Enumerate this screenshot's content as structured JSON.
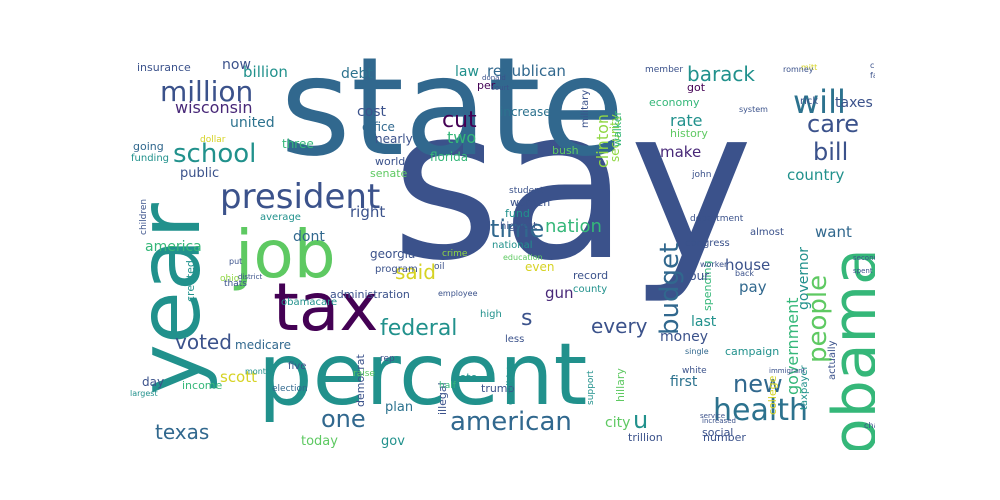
{
  "wordcloud": {
    "colors": {
      "purple": "#440154",
      "indigo": "#3b528b",
      "blue": "#31688e",
      "teal": "#21918c",
      "green": "#35b779",
      "lime": "#90d743",
      "yellow": "#d6d324"
    },
    "words": [
      {
        "text": "say",
        "color": "#3b528b"
      },
      {
        "text": "state",
        "color": "#31688e"
      },
      {
        "text": "year",
        "color": "#21918c"
      },
      {
        "text": "percent",
        "color": "#21918c"
      },
      {
        "text": "obama",
        "color": "#35b779"
      },
      {
        "text": "job",
        "color": "#5ec962"
      },
      {
        "text": "tax",
        "color": "#440154"
      },
      {
        "text": "president",
        "color": "#3b528b"
      },
      {
        "text": "health",
        "color": "#2c728e"
      },
      {
        "text": "american",
        "color": "#31688e"
      },
      {
        "text": "will",
        "color": "#2c728e"
      },
      {
        "text": "million",
        "color": "#3b528b"
      },
      {
        "text": "school",
        "color": "#21918c"
      },
      {
        "text": "people",
        "color": "#5ec962"
      },
      {
        "text": "budget",
        "color": "#31688e"
      },
      {
        "text": "care",
        "color": "#3b528b"
      },
      {
        "text": "bill",
        "color": "#3b528b"
      },
      {
        "text": "time",
        "color": "#31688e"
      },
      {
        "text": "federal",
        "color": "#21918c"
      },
      {
        "text": "new",
        "color": "#31688e"
      },
      {
        "text": "one",
        "color": "#31688e"
      },
      {
        "text": "voted",
        "color": "#3b528b"
      },
      {
        "text": "texas",
        "color": "#31688e"
      },
      {
        "text": "barack",
        "color": "#21918c"
      },
      {
        "text": "every",
        "color": "#3b528b"
      },
      {
        "text": "cut",
        "color": "#440154"
      },
      {
        "text": "said",
        "color": "#d6d324"
      },
      {
        "text": "government",
        "color": "#35b779"
      },
      {
        "text": "s",
        "color": "#3b528b"
      },
      {
        "text": "u",
        "color": "#21918c"
      },
      {
        "text": "nation",
        "color": "#35b779"
      },
      {
        "text": "wisconsin",
        "color": "#482878"
      },
      {
        "text": "united",
        "color": "#2c728e"
      },
      {
        "text": "billion",
        "color": "#21918c"
      },
      {
        "text": "law",
        "color": "#21918c"
      },
      {
        "text": "republican",
        "color": "#31688e"
      },
      {
        "text": "now",
        "color": "#3b528b"
      },
      {
        "text": "debt",
        "color": "#2c728e"
      },
      {
        "text": "cost",
        "color": "#3b528b"
      },
      {
        "text": "office",
        "color": "#31688e"
      },
      {
        "text": "two",
        "color": "#35b779"
      },
      {
        "text": "clinton",
        "color": "#90d743"
      },
      {
        "text": "rate",
        "color": "#21918c"
      },
      {
        "text": "make",
        "color": "#482878"
      },
      {
        "text": "taxes",
        "color": "#3b528b"
      },
      {
        "text": "country",
        "color": "#21918c"
      },
      {
        "text": "house",
        "color": "#3b528b"
      },
      {
        "text": "pay",
        "color": "#31688e"
      },
      {
        "text": "want",
        "color": "#31688e"
      },
      {
        "text": "governor",
        "color": "#21918c"
      },
      {
        "text": "right",
        "color": "#3b528b"
      },
      {
        "text": "dont",
        "color": "#31688e"
      },
      {
        "text": "america",
        "color": "#35b779"
      },
      {
        "text": "scott",
        "color": "#d6d324"
      },
      {
        "text": "public",
        "color": "#3b528b"
      },
      {
        "text": "gun",
        "color": "#482878"
      },
      {
        "text": "money",
        "color": "#3b528b"
      },
      {
        "text": "last",
        "color": "#21918c"
      },
      {
        "text": "first",
        "color": "#2c728e"
      },
      {
        "text": "city",
        "color": "#5ec962"
      },
      {
        "text": "gov",
        "color": "#21918c"
      },
      {
        "text": "plan",
        "color": "#2c728e"
      },
      {
        "text": "today",
        "color": "#5ec962"
      },
      {
        "text": "day",
        "color": "#3b528b"
      },
      {
        "text": "medicare",
        "color": "#31688e"
      },
      {
        "text": "georgia",
        "color": "#3b528b"
      },
      {
        "text": "florida",
        "color": "#35b779"
      },
      {
        "text": "insurance",
        "color": "#3b528b"
      },
      {
        "text": "increase",
        "color": "#2c728e"
      },
      {
        "text": "per",
        "color": "#440154"
      },
      {
        "text": "got",
        "color": "#440154"
      },
      {
        "text": "security",
        "color": "#90d743"
      },
      {
        "text": "economy",
        "color": "#35b779"
      },
      {
        "text": "history",
        "color": "#5ec962"
      },
      {
        "text": "world",
        "color": "#3b528b"
      },
      {
        "text": "senate",
        "color": "#5ec962"
      },
      {
        "text": "women",
        "color": "#3b528b"
      },
      {
        "text": "fund",
        "color": "#21918c"
      },
      {
        "text": "even",
        "color": "#d6d324"
      },
      {
        "text": "national",
        "color": "#21918c"
      },
      {
        "text": "bush",
        "color": "#5ec962"
      },
      {
        "text": "nearly",
        "color": "#3b528b"
      },
      {
        "text": "three",
        "color": "#35b779"
      },
      {
        "text": "going",
        "color": "#31688e"
      },
      {
        "text": "funding",
        "color": "#21918c"
      },
      {
        "text": "created",
        "color": "#21918c"
      },
      {
        "text": "administration",
        "color": "#3b528b"
      },
      {
        "text": "program",
        "color": "#3b528b"
      },
      {
        "text": "highest",
        "color": "#3b528b"
      },
      {
        "text": "average",
        "color": "#21918c"
      },
      {
        "text": "spending",
        "color": "#35b779"
      },
      {
        "text": "four",
        "color": "#3b528b"
      },
      {
        "text": "record",
        "color": "#3b528b"
      },
      {
        "text": "county",
        "color": "#21918c"
      },
      {
        "text": "high",
        "color": "#21918c"
      },
      {
        "text": "democrat",
        "color": "#3b528b"
      },
      {
        "text": "illegal",
        "color": "#3b528b"
      },
      {
        "text": "vote",
        "color": "#21918c"
      },
      {
        "text": "hillary",
        "color": "#5ec962"
      },
      {
        "text": "campaign",
        "color": "#21918c"
      },
      {
        "text": "taxpayer",
        "color": "#21918c"
      },
      {
        "text": "college",
        "color": "#d6d324"
      },
      {
        "text": "rick",
        "color": "#3b528b"
      },
      {
        "text": "john",
        "color": "#3b528b"
      },
      {
        "text": "member",
        "color": "#3b528b"
      },
      {
        "text": "walker",
        "color": "#35b779"
      },
      {
        "text": "military",
        "color": "#3b528b"
      },
      {
        "text": "student",
        "color": "#3b528b"
      },
      {
        "text": "education",
        "color": "#5ec962"
      },
      {
        "text": "less",
        "color": "#3b528b"
      },
      {
        "text": "five",
        "color": "#3b528b"
      },
      {
        "text": "thats",
        "color": "#3b528b"
      },
      {
        "text": "obamacare",
        "color": "#21918c"
      },
      {
        "text": "ohio",
        "color": "#90d743"
      },
      {
        "text": "children",
        "color": "#3b528b"
      },
      {
        "text": "income",
        "color": "#35b779"
      },
      {
        "text": "election",
        "color": "#31688e"
      },
      {
        "text": "month",
        "color": "#21918c"
      },
      {
        "text": "raise",
        "color": "#5ec962"
      },
      {
        "text": "rep",
        "color": "#3b528b"
      },
      {
        "text": "half",
        "color": "#35b779"
      },
      {
        "text": "trump",
        "color": "#3b528b"
      },
      {
        "text": "candidate",
        "color": "#21918c"
      },
      {
        "text": "support",
        "color": "#21918c"
      },
      {
        "text": "trillion",
        "color": "#3b528b"
      },
      {
        "text": "number",
        "color": "#3b528b"
      },
      {
        "text": "social",
        "color": "#3b528b"
      },
      {
        "text": "white",
        "color": "#3b528b"
      },
      {
        "text": "single",
        "color": "#31688e"
      },
      {
        "text": "actually",
        "color": "#3b528b"
      },
      {
        "text": "almost",
        "color": "#3b528b"
      },
      {
        "text": "back",
        "color": "#3b528b"
      },
      {
        "text": "congress",
        "color": "#3b528b"
      },
      {
        "text": "department",
        "color": "#3b528b"
      },
      {
        "text": "worker",
        "color": "#3b528b"
      },
      {
        "text": "change",
        "color": "#3b528b"
      },
      {
        "text": "system",
        "color": "#3b528b"
      },
      {
        "text": "crime",
        "color": "#90d743"
      },
      {
        "text": "dollar",
        "color": "#d6d324"
      },
      {
        "text": "district",
        "color": "#3b528b"
      },
      {
        "text": "employee",
        "color": "#3b528b"
      },
      {
        "text": "oil",
        "color": "#3b528b"
      },
      {
        "text": "largest",
        "color": "#21918c"
      },
      {
        "text": "put",
        "color": "#3b528b"
      },
      {
        "text": "mitt",
        "color": "#d6d324"
      },
      {
        "text": "romney",
        "color": "#3b528b"
      },
      {
        "text": "family",
        "color": "#3b528b"
      },
      {
        "text": "china",
        "color": "#3b528b"
      },
      {
        "text": "milwaukee",
        "color": "#3b528b"
      },
      {
        "text": "donald",
        "color": "#3b528b"
      },
      {
        "text": "court",
        "color": "#3b528b"
      },
      {
        "text": "immigrant",
        "color": "#3b528b"
      },
      {
        "text": "increased",
        "color": "#3b528b"
      },
      {
        "text": "spent",
        "color": "#3b528b"
      },
      {
        "text": "second",
        "color": "#3b528b"
      },
      {
        "text": "service",
        "color": "#3b528b"
      }
    ]
  }
}
